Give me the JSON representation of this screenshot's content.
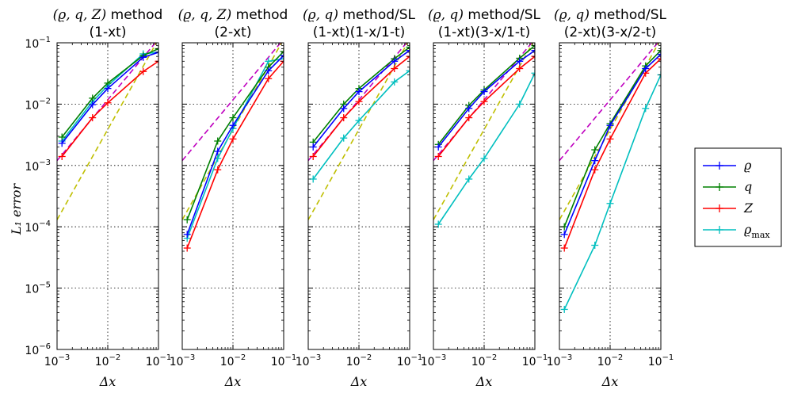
{
  "chart_data": {
    "type": "line",
    "scale": "log-log",
    "shared_x_label": "Δx",
    "shared_y_label": "L₁ error",
    "x_ticks": [
      "10^-3",
      "10^-2",
      "10^-1"
    ],
    "y_ticks": [
      "10^-6",
      "10^-5",
      "10^-4",
      "10^-3",
      "10^-2",
      "10^-1"
    ],
    "xlim": [
      0.001,
      0.1
    ],
    "ylim": [
      1e-06,
      0.1
    ],
    "grid": true,
    "legend_position": "right",
    "legend": [
      {
        "key": "rho",
        "label": "ϱ",
        "color": "#0000ff"
      },
      {
        "key": "q",
        "label": "q",
        "color": "#008000"
      },
      {
        "key": "Z",
        "label": "Z",
        "color": "#ff0000"
      },
      {
        "key": "rho_max",
        "label": "ϱ_max",
        "color": "#00bfbf"
      }
    ],
    "reference_lines": [
      {
        "order": 1,
        "color": "#bf00bf",
        "style": "dashed"
      },
      {
        "order": 2,
        "color": "#bfbf00",
        "style": "dashed"
      }
    ],
    "panels": [
      {
        "title_math": "(ϱ, q, Z)",
        "title_text": "method",
        "subtitle": "(1-xt)",
        "x": [
          0.00125,
          0.005,
          0.01,
          0.05,
          0.1
        ],
        "series": {
          "rho": [
            0.0023,
            0.0098,
            0.018,
            0.058,
            0.07
          ],
          "q": [
            0.0029,
            0.0125,
            0.022,
            0.062,
            0.08
          ],
          "Z": [
            0.0014,
            0.006,
            0.0105,
            0.034,
            0.05
          ],
          "rho_max": [
            0.0025,
            0.011,
            0.02,
            0.066,
            0.07
          ]
        },
        "reference_lines": [
          [
            0.0012,
            0.115
          ],
          [
            0.00013,
            0.115
          ]
        ]
      },
      {
        "title_math": "(ϱ, q, Z)",
        "title_text": "method",
        "subtitle": "(2-xt)",
        "x": [
          0.00125,
          0.005,
          0.01,
          0.05,
          0.1
        ],
        "series": {
          "rho": [
            7.5e-05,
            0.0017,
            0.0045,
            0.035,
            0.062
          ],
          "q": [
            0.00013,
            0.0025,
            0.006,
            0.04,
            0.072
          ],
          "Z": [
            4.5e-05,
            0.00085,
            0.0027,
            0.026,
            0.05
          ],
          "rho_max": [
            6.5e-05,
            0.0013,
            0.004,
            0.05,
            0.055
          ]
        },
        "reference_lines": [
          [
            0.0012,
            0.115
          ],
          [
            0.00013,
            0.115
          ]
        ]
      },
      {
        "title_math": "(ϱ, q)",
        "title_text": "method/SL",
        "subtitle": "(1-xt)(1-x/1-t)",
        "x": [
          0.00125,
          0.005,
          0.01,
          0.05,
          0.1
        ],
        "series": {
          "rho": [
            0.002,
            0.0085,
            0.016,
            0.05,
            0.075
          ],
          "q": [
            0.0024,
            0.01,
            0.018,
            0.055,
            0.085
          ],
          "Z": [
            0.0014,
            0.006,
            0.011,
            0.038,
            0.06
          ],
          "rho_max": [
            0.0006,
            0.0028,
            0.0054,
            0.023,
            0.035
          ]
        },
        "reference_lines": [
          [
            0.0012,
            0.115
          ],
          [
            0.00013,
            0.115
          ]
        ]
      },
      {
        "title_math": "(ϱ, q)",
        "title_text": "method/SL",
        "subtitle": "(1-xt)(3-x/1-t)",
        "x": [
          0.00125,
          0.005,
          0.01,
          0.05,
          0.1
        ],
        "series": {
          "rho": [
            0.002,
            0.0085,
            0.016,
            0.05,
            0.075
          ],
          "q": [
            0.0022,
            0.0095,
            0.017,
            0.056,
            0.09
          ],
          "Z": [
            0.0014,
            0.006,
            0.011,
            0.038,
            0.06
          ],
          "rho_max": [
            0.00011,
            0.0006,
            0.0013,
            0.01,
            0.032
          ]
        },
        "reference_lines": [
          [
            0.0012,
            0.115
          ],
          [
            0.00013,
            0.115
          ]
        ]
      },
      {
        "title_math": "(ϱ, q)",
        "title_text": "method/SL",
        "subtitle": "(2-xt)(3-x/2-t)",
        "x": [
          0.00125,
          0.005,
          0.01,
          0.05,
          0.1
        ],
        "series": {
          "rho": [
            7.5e-05,
            0.0012,
            0.0045,
            0.038,
            0.065
          ],
          "q": [
            0.0001,
            0.0018,
            0.0048,
            0.042,
            0.075
          ],
          "Z": [
            4.5e-05,
            0.00085,
            0.0027,
            0.032,
            0.055
          ],
          "rho_max": [
            4.5e-06,
            5e-05,
            0.00024,
            0.0085,
            0.03
          ]
        },
        "reference_lines": [
          [
            0.0012,
            0.115
          ],
          [
            0.00013,
            0.115
          ]
        ]
      }
    ]
  }
}
